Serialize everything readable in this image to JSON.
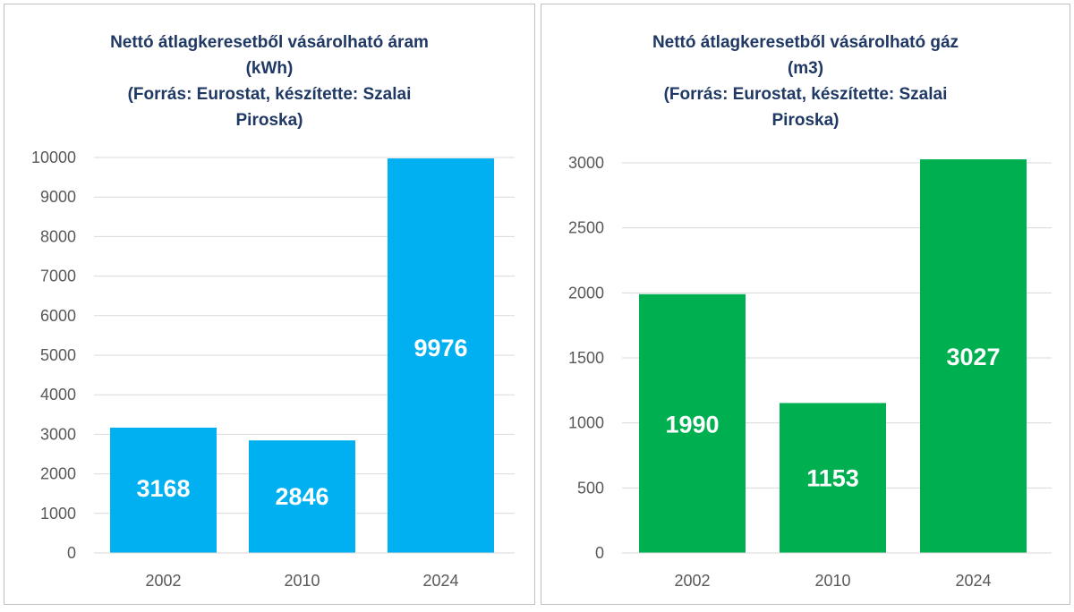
{
  "chart_data": [
    {
      "type": "bar",
      "title_lines": [
        "Nettó átlagkeresetből vásárolható áram",
        "(kWh)",
        "(Forrás: Eurostat, készítette: Szalai",
        "Piroska)"
      ],
      "categories": [
        "2002",
        "2010",
        "2024"
      ],
      "values": [
        3168,
        2846,
        9976
      ],
      "data_labels": [
        "3168",
        "2846",
        "9976"
      ],
      "label_value_pos": [
        1650,
        1450,
        5200
      ],
      "ylim": [
        0,
        10000
      ],
      "yticks": [
        0,
        1000,
        2000,
        3000,
        4000,
        5000,
        6000,
        7000,
        8000,
        9000,
        10000
      ],
      "xlabel": "",
      "ylabel": "",
      "grid": true,
      "color": "#00b0f0"
    },
    {
      "type": "bar",
      "title_lines": [
        "Nettó átlagkeresetből vásárolható gáz",
        "(m3)",
        "(Forrás: Eurostat, készítette: Szalai",
        "Piroska)"
      ],
      "categories": [
        "2002",
        "2010",
        "2024"
      ],
      "values": [
        1990,
        1153,
        3027
      ],
      "data_labels": [
        "1990",
        "1153",
        "3027"
      ],
      "label_value_pos": [
        995,
        580,
        1515
      ],
      "ylim": [
        0,
        3000
      ],
      "yticks": [
        0,
        500,
        1000,
        1500,
        2000,
        2500,
        3000
      ],
      "xlabel": "",
      "ylabel": "",
      "grid": true,
      "color": "#00b050"
    }
  ]
}
